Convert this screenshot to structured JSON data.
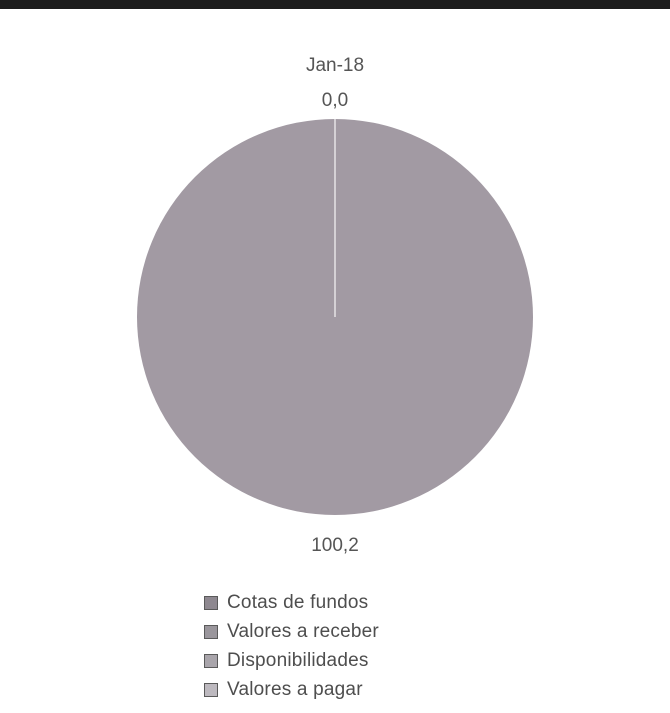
{
  "chart_data": {
    "type": "pie",
    "title": "Jan-18",
    "slices": [
      {
        "name": "Cotas de fundos",
        "value": 100.2,
        "label": "100,2",
        "color": "#a29aa3"
      },
      {
        "name": "Valores a receber",
        "value": 0.0,
        "label": "0,0",
        "color": "#a8a4aa"
      },
      {
        "name": "Disponibilidades",
        "value": 0.0,
        "label": "",
        "color": "#b1adb2"
      },
      {
        "name": "Valores a pagar",
        "value": 0.0,
        "label": "",
        "color": "#c2bec4"
      }
    ],
    "legend_position": "bottom"
  },
  "legend": {
    "items": [
      {
        "label": "Cotas de fundos",
        "color": "#8e8890"
      },
      {
        "label": "Valores a receber",
        "color": "#9a969c"
      },
      {
        "label": "Disponibilidades",
        "color": "#a9a5ab"
      },
      {
        "label": "Valores a pagar",
        "color": "#bdb9bf"
      }
    ]
  }
}
